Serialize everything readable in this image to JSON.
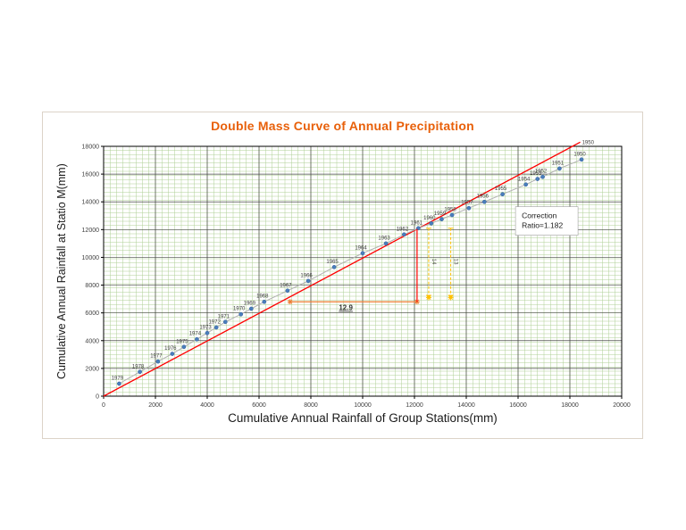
{
  "chart_data": {
    "type": "scatter",
    "title": "Double Mass Curve of Annual Precipitation",
    "title_color": "#E8600A",
    "xlabel": "Cumulative Annual Rainfall of Group Stations(mm)",
    "ylabel": "Cumulative Annual Rainfall at Statio M(mm)",
    "xlim": [
      0,
      20000
    ],
    "ylim": [
      0,
      18000
    ],
    "x_ticks": [
      0,
      2000,
      4000,
      6000,
      8000,
      10000,
      12000,
      14000,
      16000,
      18000,
      20000
    ],
    "y_ticks": [
      0,
      2000,
      4000,
      6000,
      8000,
      10000,
      12000,
      14000,
      16000,
      18000
    ],
    "grid": {
      "minor_color": "#a6ca8a",
      "major_color": "#2b2b2b",
      "minor_x_step": 250,
      "minor_y_step": 300
    },
    "series": [
      {
        "name": "cumulative-rainfall-points",
        "marker_color": "#4a7ebb",
        "marker_edge": "#2e5b9e",
        "line_color": "#b0b0b0",
        "label_color": "#404040",
        "points": [
          {
            "label": "1979",
            "x": 600,
            "y": 900
          },
          {
            "label": "1978",
            "x": 1400,
            "y": 1750
          },
          {
            "label": "1977",
            "x": 2100,
            "y": 2500
          },
          {
            "label": "1976",
            "x": 2650,
            "y": 3050
          },
          {
            "label": "1975",
            "x": 3100,
            "y": 3550
          },
          {
            "label": "1974",
            "x": 3600,
            "y": 4100
          },
          {
            "label": "1973",
            "x": 4000,
            "y": 4550
          },
          {
            "label": "1972",
            "x": 4350,
            "y": 4950
          },
          {
            "label": "1971",
            "x": 4700,
            "y": 5350
          },
          {
            "label": "1970",
            "x": 5300,
            "y": 5900
          },
          {
            "label": "1969",
            "x": 5700,
            "y": 6300
          },
          {
            "label": "1968",
            "x": 6200,
            "y": 6800
          },
          {
            "label": "1967",
            "x": 7100,
            "y": 7600
          },
          {
            "label": "1966",
            "x": 7900,
            "y": 8300
          },
          {
            "label": "1965",
            "x": 8900,
            "y": 9300
          },
          {
            "label": "1964",
            "x": 10000,
            "y": 10300
          },
          {
            "label": "1963",
            "x": 10900,
            "y": 11000
          },
          {
            "label": "1962",
            "x": 11600,
            "y": 11650
          },
          {
            "label": "1961",
            "x": 12150,
            "y": 12100
          },
          {
            "label": "1960",
            "x": 12650,
            "y": 12450
          },
          {
            "label": "1959",
            "x": 13050,
            "y": 12750
          },
          {
            "label": "1958",
            "x": 13450,
            "y": 13050
          },
          {
            "label": "1957",
            "x": 14100,
            "y": 13550
          },
          {
            "label": "1956",
            "x": 14700,
            "y": 14000
          },
          {
            "label": "1955",
            "x": 15400,
            "y": 14550
          },
          {
            "label": "1954",
            "x": 16300,
            "y": 15250
          },
          {
            "label": "1953",
            "x": 16750,
            "y": 15650
          },
          {
            "label": "1952",
            "x": 16950,
            "y": 15800
          },
          {
            "label": "1951",
            "x": 17600,
            "y": 16400
          },
          {
            "label": "1950",
            "x": 18450,
            "y": 17050
          }
        ]
      }
    ],
    "trend_line": {
      "color": "#FF0000",
      "x1": 0,
      "y1": 0,
      "x2": 18400,
      "y2": 18300,
      "end_label": "1950"
    },
    "annotations": {
      "correction_box": {
        "lines": [
          "Correction",
          "Ratio=1.182"
        ],
        "x": 15900,
        "y": 13650,
        "w": 70,
        "h": 32,
        "bg": "#ffffff",
        "border": "#9e9e9e",
        "text_color": "#1a1a1a"
      },
      "run_label": {
        "text": "12.9",
        "x": 9350,
        "y": 6200,
        "color": "#333333"
      },
      "h_line": {
        "color": "#ED7D31",
        "y": 6800,
        "x1": 7200,
        "x2": 12100
      },
      "v_line": {
        "color": "#FF0000",
        "x": 12100,
        "y1": 6800,
        "y2": 12050
      },
      "dash_color": "#FFC000",
      "dashed_lines": [
        {
          "x": 12550,
          "y1": 12100,
          "y2": 7300,
          "label": "14"
        },
        {
          "x": 13400,
          "y1": 12100,
          "y2": 7300,
          "label": "13"
        }
      ],
      "star_color": "#ED7D31"
    }
  }
}
